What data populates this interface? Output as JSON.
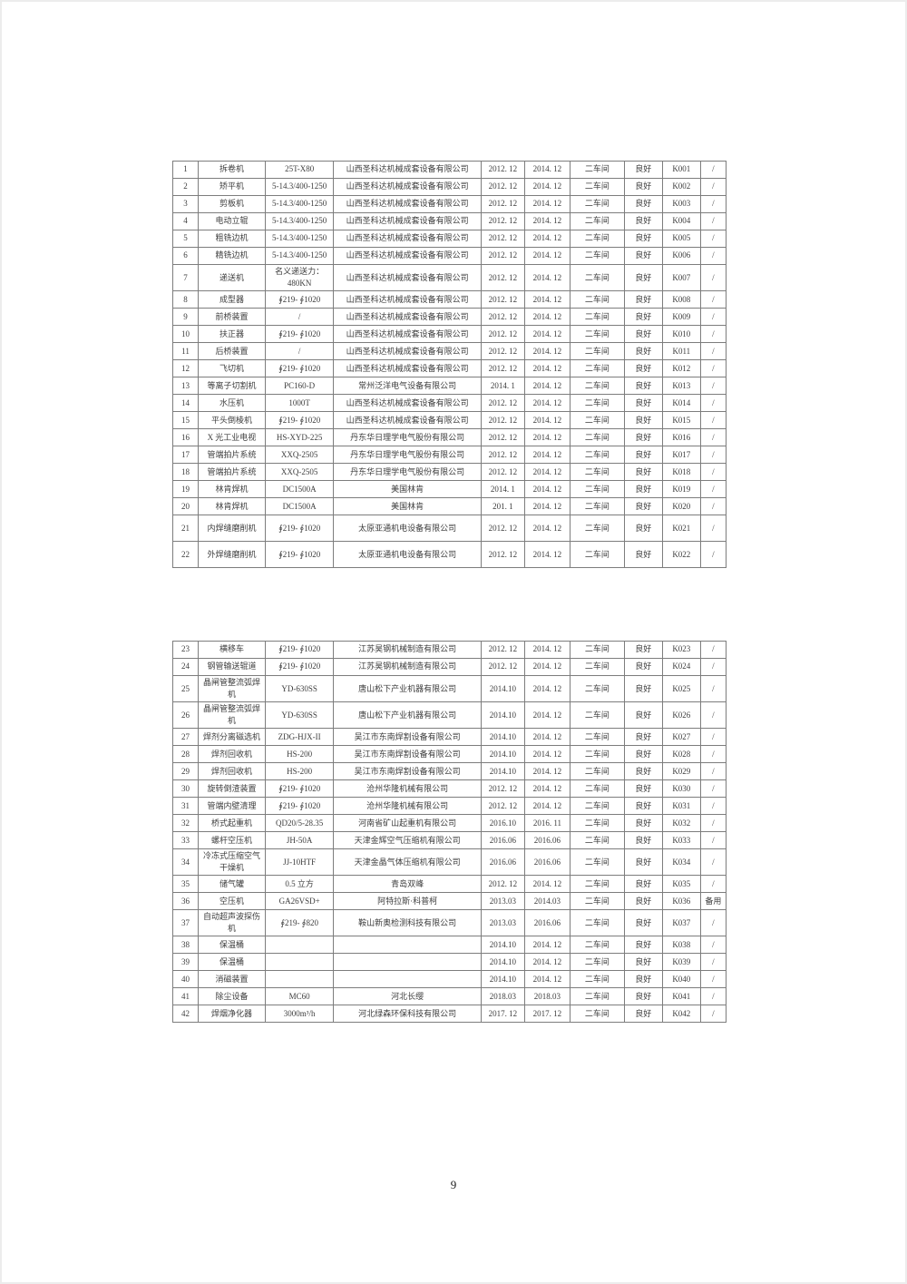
{
  "page_number": "9",
  "tables": [
    {
      "rows": [
        [
          "1",
          "拆卷机",
          "25T-X80",
          "山西圣科达机械成套设备有限公司",
          "2012. 12",
          "2014. 12",
          "二车间",
          "良好",
          "K001",
          "/"
        ],
        [
          "2",
          "矫平机",
          "5-14.3/400-1250",
          "山西圣科达机械成套设备有限公司",
          "2012. 12",
          "2014. 12",
          "二车间",
          "良好",
          "K002",
          "/"
        ],
        [
          "3",
          "剪板机",
          "5-14.3/400-1250",
          "山西圣科达机械成套设备有限公司",
          "2012. 12",
          "2014. 12",
          "二车间",
          "良好",
          "K003",
          "/"
        ],
        [
          "4",
          "电动立辊",
          "5-14.3/400-1250",
          "山西圣科达机械成套设备有限公司",
          "2012. 12",
          "2014. 12",
          "二车间",
          "良好",
          "K004",
          "/"
        ],
        [
          "5",
          "粗铣边机",
          "5-14.3/400-1250",
          "山西圣科达机械成套设备有限公司",
          "2012. 12",
          "2014. 12",
          "二车间",
          "良好",
          "K005",
          "/"
        ],
        [
          "6",
          "精铣边机",
          "5-14.3/400-1250",
          "山西圣科达机械成套设备有限公司",
          "2012. 12",
          "2014. 12",
          "二车间",
          "良好",
          "K006",
          "/"
        ],
        [
          "7",
          "递送机",
          "名义递送力：480KN",
          "山西圣科达机械成套设备有限公司",
          "2012. 12",
          "2014. 12",
          "二车间",
          "良好",
          "K007",
          "/"
        ],
        [
          "8",
          "成型器",
          "∮219- ∮1020",
          "山西圣科达机械成套设备有限公司",
          "2012. 12",
          "2014. 12",
          "二车间",
          "良好",
          "K008",
          "/"
        ],
        [
          "9",
          "前桥装置",
          "/",
          "山西圣科达机械成套设备有限公司",
          "2012. 12",
          "2014. 12",
          "二车间",
          "良好",
          "K009",
          "/"
        ],
        [
          "10",
          "扶正器",
          "∮219- ∮1020",
          "山西圣科达机械成套设备有限公司",
          "2012. 12",
          "2014. 12",
          "二车间",
          "良好",
          "K010",
          "/"
        ],
        [
          "11",
          "后桥装置",
          "/",
          "山西圣科达机械成套设备有限公司",
          "2012. 12",
          "2014. 12",
          "二车间",
          "良好",
          "K011",
          "/"
        ],
        [
          "12",
          "飞切机",
          "∮219- ∮1020",
          "山西圣科达机械成套设备有限公司",
          "2012. 12",
          "2014. 12",
          "二车间",
          "良好",
          "K012",
          "/"
        ],
        [
          "13",
          "等离子切割机",
          "PC160-D",
          "常州泛洋电气设备有限公司",
          "2014. 1",
          "2014. 12",
          "二车间",
          "良好",
          "K013",
          "/"
        ],
        [
          "14",
          "水压机",
          "1000T",
          "山西圣科达机械成套设备有限公司",
          "2012. 12",
          "2014. 12",
          "二车间",
          "良好",
          "K014",
          "/"
        ],
        [
          "15",
          "平头倒棱机",
          "∮219- ∮1020",
          "山西圣科达机械成套设备有限公司",
          "2012. 12",
          "2014. 12",
          "二车间",
          "良好",
          "K015",
          "/"
        ],
        [
          "16",
          "X 光工业电视",
          "HS-XYD-225",
          "丹东华日理学电气股份有限公司",
          "2012. 12",
          "2014. 12",
          "二车间",
          "良好",
          "K016",
          "/"
        ],
        [
          "17",
          "管端拍片系统",
          "XXQ-2505",
          "丹东华日理学电气股份有限公司",
          "2012. 12",
          "2014. 12",
          "二车间",
          "良好",
          "K017",
          "/"
        ],
        [
          "18",
          "管端拍片系统",
          "XXQ-2505",
          "丹东华日理学电气股份有限公司",
          "2012. 12",
          "2014. 12",
          "二车间",
          "良好",
          "K018",
          "/"
        ],
        [
          "19",
          "林肯焊机",
          "DC1500A",
          "美国林肯",
          "2014. 1",
          "2014. 12",
          "二车间",
          "良好",
          "K019",
          "/"
        ],
        [
          "20",
          "林肯焊机",
          "DC1500A",
          "美国林肯",
          "201. 1",
          "2014. 12",
          "二车间",
          "良好",
          "K020",
          "/"
        ],
        [
          "21",
          "内焊缝磨削机",
          "∮219- ∮1020",
          "太原亚通机电设备有限公司",
          "2012. 12",
          "2014. 12",
          "二车间",
          "良好",
          "K021",
          "/"
        ],
        [
          "22",
          "外焊缝磨削机",
          "∮219- ∮1020",
          "太原亚通机电设备有限公司",
          "2012. 12",
          "2014. 12",
          "二车间",
          "良好",
          "K022",
          "/"
        ]
      ]
    },
    {
      "rows": [
        [
          "23",
          "横移车",
          "∮219- ∮1020",
          "江苏昊钢机械制造有限公司",
          "2012. 12",
          "2014. 12",
          "二车间",
          "良好",
          "K023",
          "/"
        ],
        [
          "24",
          "钢管输送辊道",
          "∮219- ∮1020",
          "江苏昊钢机械制造有限公司",
          "2012. 12",
          "2014. 12",
          "二车间",
          "良好",
          "K024",
          "/"
        ],
        [
          "25",
          "晶闸管整流弧焊机",
          "YD-630SS",
          "唐山松下产业机器有限公司",
          "2014.10",
          "2014. 12",
          "二车间",
          "良好",
          "K025",
          "/"
        ],
        [
          "26",
          "晶闸管整流弧焊机",
          "YD-630SS",
          "唐山松下产业机器有限公司",
          "2014.10",
          "2014. 12",
          "二车间",
          "良好",
          "K026",
          "/"
        ],
        [
          "27",
          "焊剂分离磁选机",
          "ZDG-HJX-II",
          "吴江市东南焊割设备有限公司",
          "2014.10",
          "2014. 12",
          "二车间",
          "良好",
          "K027",
          "/"
        ],
        [
          "28",
          "焊剂回收机",
          "HS-200",
          "吴江市东南焊割设备有限公司",
          "2014.10",
          "2014. 12",
          "二车间",
          "良好",
          "K028",
          "/"
        ],
        [
          "29",
          "焊剂回收机",
          "HS-200",
          "吴江市东南焊割设备有限公司",
          "2014.10",
          "2014. 12",
          "二车间",
          "良好",
          "K029",
          "/"
        ],
        [
          "30",
          "旋转倒渣装置",
          "∮219- ∮1020",
          "沧州华隆机械有限公司",
          "2012. 12",
          "2014. 12",
          "二车间",
          "良好",
          "K030",
          "/"
        ],
        [
          "31",
          "管端内壁清理",
          "∮219- ∮1020",
          "沧州华隆机械有限公司",
          "2012. 12",
          "2014. 12",
          "二车间",
          "良好",
          "K031",
          "/"
        ],
        [
          "32",
          "桥式起重机",
          "QD20/5-28.35",
          "河南省矿山起重机有限公司",
          "2016.10",
          "2016. 11",
          "二车间",
          "良好",
          "K032",
          "/"
        ],
        [
          "33",
          "螺杆空压机",
          "JH-50A",
          "天津金辉空气压缩机有限公司",
          "2016.06",
          "2016.06",
          "二车间",
          "良好",
          "K033",
          "/"
        ],
        [
          "34",
          "冷冻式压缩空气干燥机",
          "JJ-10HTF",
          "天津金晶气体压缩机有限公司",
          "2016.06",
          "2016.06",
          "二车间",
          "良好",
          "K034",
          "/"
        ],
        [
          "35",
          "储气罐",
          "0.5 立方",
          "青岛双峰",
          "2012. 12",
          "2014. 12",
          "二车间",
          "良好",
          "K035",
          "/"
        ],
        [
          "36",
          "空压机",
          "GA26VSD+",
          "阿特拉斯·科普柯",
          "2013.03",
          "2014.03",
          "二车间",
          "良好",
          "K036",
          "备用"
        ],
        [
          "37",
          "自动超声波探伤机",
          "∮219- ∮820",
          "鞍山新奥检测科技有限公司",
          "2013.03",
          "2016.06",
          "二车间",
          "良好",
          "K037",
          "/"
        ],
        [
          "38",
          "保温桶",
          "",
          "",
          "2014.10",
          "2014. 12",
          "二车间",
          "良好",
          "K038",
          "/"
        ],
        [
          "39",
          "保温桶",
          "",
          "",
          "2014.10",
          "2014. 12",
          "二车间",
          "良好",
          "K039",
          "/"
        ],
        [
          "40",
          "消磁装置",
          "",
          "",
          "2014.10",
          "2014. 12",
          "二车间",
          "良好",
          "K040",
          "/"
        ],
        [
          "41",
          "除尘设备",
          "MC60",
          "河北长缨",
          "2018.03",
          "2018.03",
          "二车间",
          "良好",
          "K041",
          "/"
        ],
        [
          "42",
          "焊烟净化器",
          "3000m³/h",
          "河北绿森环保科技有限公司",
          "2017. 12",
          "2017. 12",
          "二车间",
          "良好",
          "K042",
          "/"
        ]
      ]
    }
  ]
}
